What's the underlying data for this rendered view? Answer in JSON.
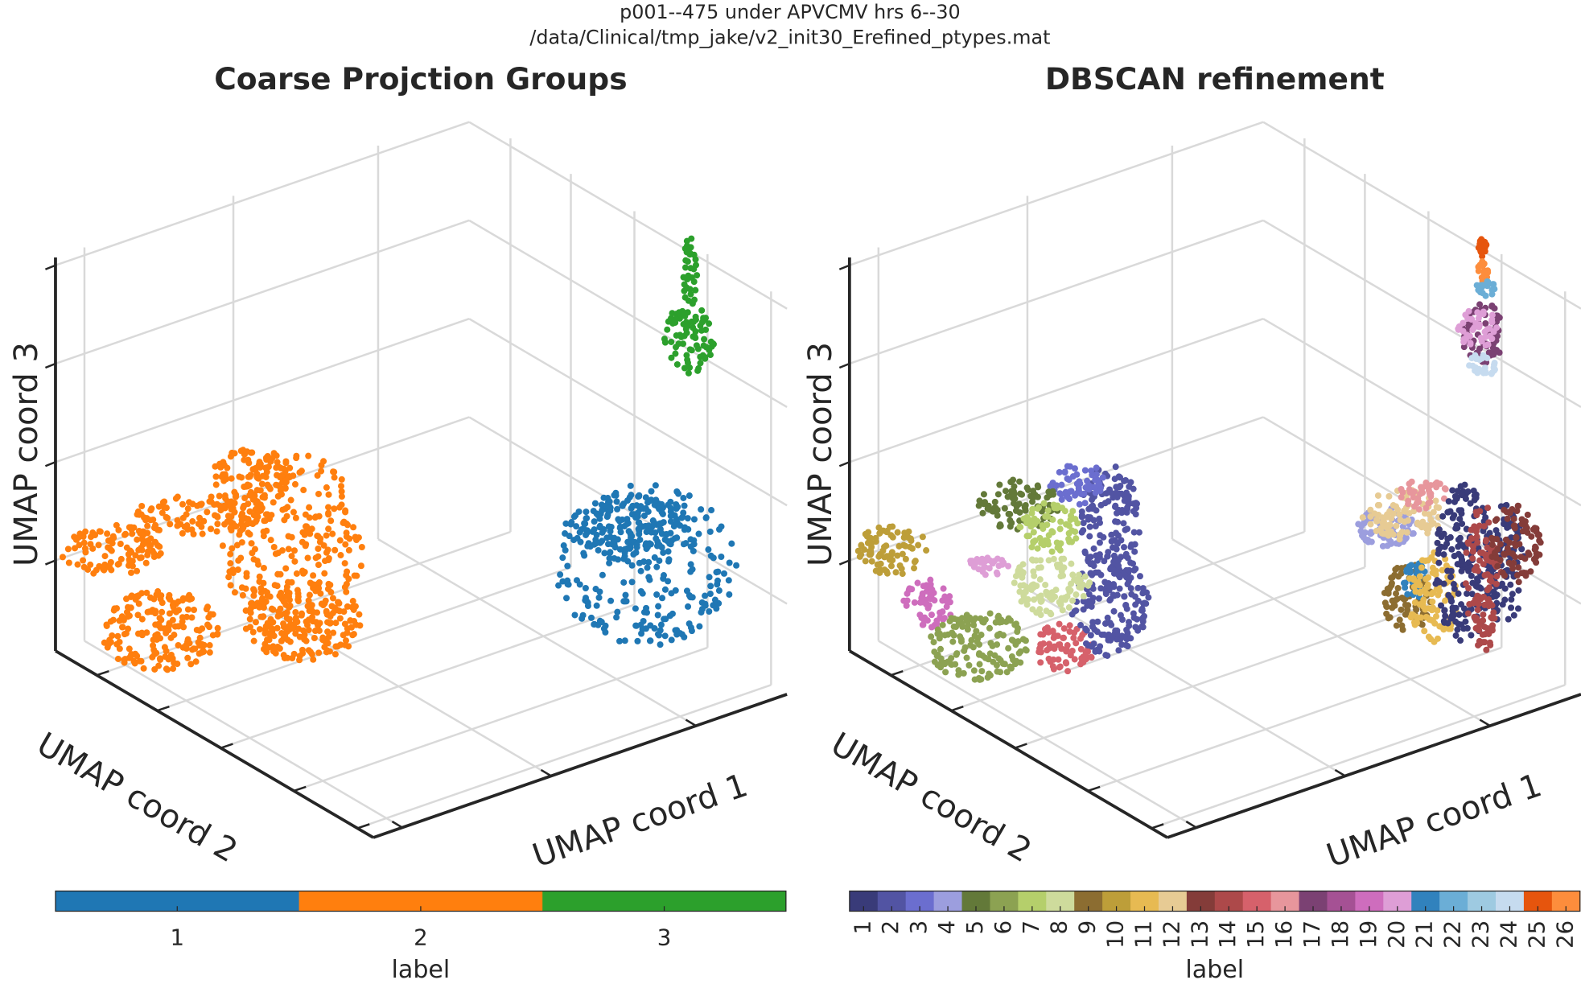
{
  "suptitle": [
    "p001--475 under APVCMV hrs 6--30",
    "/data/Clinical/tmp_jake/v2_init30_Erefined_ptypes.mat"
  ],
  "chart_data": [
    {
      "type": "scatter3d",
      "title": "Coarse Projction Groups",
      "xlabel": "UMAP coord 1",
      "ylabel": "UMAP coord 2",
      "zlabel": "UMAP coord 3",
      "grid": true,
      "colorbar": {
        "label": "label",
        "ticks": [
          1,
          2,
          3
        ],
        "colors": [
          "#1f77b4",
          "#ff7f0e",
          "#2ca02c"
        ]
      }
    },
    {
      "type": "scatter3d",
      "title": "DBSCAN refinement",
      "xlabel": "UMAP coord 1",
      "ylabel": "UMAP coord 2",
      "zlabel": "UMAP coord 3",
      "grid": true,
      "colorbar": {
        "label": "label",
        "ticks": [
          1,
          2,
          3,
          4,
          5,
          6,
          7,
          8,
          9,
          10,
          11,
          12,
          13,
          14,
          15,
          16,
          17,
          18,
          19,
          20,
          21,
          22,
          23,
          24,
          25,
          26
        ],
        "colors": [
          "#393b79",
          "#5254a3",
          "#6b6ecf",
          "#9c9ede",
          "#637939",
          "#8ca252",
          "#b5cf6b",
          "#cedb9c",
          "#8c6d31",
          "#bd9e39",
          "#e7ba52",
          "#e7cb94",
          "#843c39",
          "#ad494a",
          "#d6616b",
          "#e7969c",
          "#7b4173",
          "#a55194",
          "#ce6dbd",
          "#de9ed6",
          "#3182bd",
          "#6baed6",
          "#9ecae1",
          "#c6dbef",
          "#e6550d",
          "#fd8d3c"
        ]
      }
    }
  ]
}
